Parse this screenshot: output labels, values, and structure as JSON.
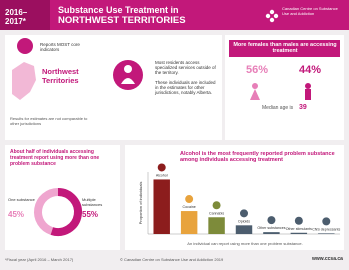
{
  "header": {
    "years": "2016–2017*",
    "title_line1": "Substance Use Treatment in",
    "title_line2": "NORTHWEST TERRITORIES",
    "org": "Canadian Centre on Substance Use and Addiction"
  },
  "indicators": {
    "badge_text": "Reports MOST core indicators",
    "region": "Northwest Territories",
    "note": "Results for estimates are not comparable to other jurisdictions"
  },
  "access": {
    "bullets": [
      "Most residents access specialized services outside of the territory.",
      "These individuals are included in the estimates for other jurisdictions, notably Alberta."
    ]
  },
  "gender": {
    "heading": "More females than males are accessing treatment",
    "female": "56%",
    "male": "44%",
    "median_label": "Median age is",
    "median_age": "39"
  },
  "chart_data": [
    {
      "type": "donut",
      "title": "About half of individuals accessing treatment report using more than one problem substance",
      "categories": [
        "One substance",
        "Multiple substances"
      ],
      "values": [
        45,
        55
      ],
      "value_labels": [
        "45%",
        "55%"
      ],
      "colors": [
        "#efa6cf",
        "#c2187a"
      ]
    },
    {
      "type": "bar",
      "title": "Alcohol is the most frequently reported problem substance among individuals accessing treatment",
      "y_label": "Proportion of individuals",
      "categories": [
        "Alcohol",
        "Cocaine",
        "Cannabis",
        "Opioids",
        "Other substances",
        "Other stimulants",
        "CNS depressants"
      ],
      "values": [
        88,
        37,
        27,
        14,
        3,
        2,
        1
      ],
      "colors": [
        "#8c1d1d",
        "#e8a33d",
        "#7d8b3a",
        "#4c5d6e",
        "#4c5d6e",
        "#4c5d6e",
        "#4c5d6e"
      ],
      "ylim": [
        0,
        100
      ],
      "note": "An individual can report using more than one problem substance."
    }
  ],
  "footer": {
    "fiscal": "*Fiscal year (April 2016 – March 2017)",
    "copyright": "© Canadian Centre on Substance Use and Addiction 2019",
    "url": "www.ccsa.ca"
  }
}
